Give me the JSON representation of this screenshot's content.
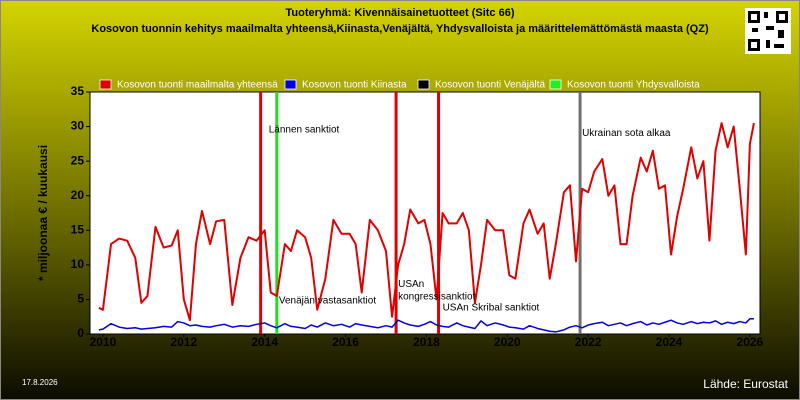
{
  "chart_data": {
    "type": "line",
    "title": "Tuoteryhmä: Kivennäisainetuotteet (Sitc 66)",
    "subtitle": "Kosovon tuonnin kehitys maailmalta yhteensä,Kiinasta,Venäjältä, Yhdysvalloista ja määrittelemättömästä maasta (QZ)",
    "ylabel": "* miljoonaa € / kuukausi",
    "date": "17.8.2026",
    "source": "Lähde: Eurostat",
    "x": [
      2009.9,
      2010.0,
      2010.2,
      2010.4,
      2010.6,
      2010.8,
      2010.95,
      2011.1,
      2011.3,
      2011.5,
      2011.7,
      2011.85,
      2012.0,
      2012.15,
      2012.3,
      2012.45,
      2012.65,
      2012.8,
      2013.0,
      2013.2,
      2013.4,
      2013.6,
      2013.8,
      2014.0,
      2014.15,
      2014.3,
      2014.5,
      2014.65,
      2014.8,
      2015.0,
      2015.15,
      2015.3,
      2015.5,
      2015.7,
      2015.9,
      2016.1,
      2016.25,
      2016.4,
      2016.6,
      2016.8,
      2017.0,
      2017.15,
      2017.3,
      2017.45,
      2017.6,
      2017.8,
      2017.95,
      2018.1,
      2018.25,
      2018.4,
      2018.55,
      2018.75,
      2018.9,
      2019.05,
      2019.2,
      2019.35,
      2019.5,
      2019.7,
      2019.9,
      2020.05,
      2020.2,
      2020.4,
      2020.55,
      2020.75,
      2020.9,
      2021.05,
      2021.2,
      2021.4,
      2021.55,
      2021.7,
      2021.85,
      2022.0,
      2022.15,
      2022.35,
      2022.5,
      2022.65,
      2022.8,
      2022.95,
      2023.1,
      2023.3,
      2023.45,
      2023.6,
      2023.75,
      2023.9,
      2024.05,
      2024.2,
      2024.35,
      2024.55,
      2024.7,
      2024.85,
      2025.0,
      2025.15,
      2025.3,
      2025.45,
      2025.6,
      2025.75,
      2025.9,
      2026.0,
      2026.1
    ],
    "series": [
      {
        "name": "Kosovon tuonti maailmalta yhteensä",
        "color": "#e00000",
        "values": [
          3.8,
          3.5,
          13,
          13.8,
          13.5,
          11,
          4.5,
          5.5,
          15.5,
          12.5,
          12.8,
          15,
          5,
          2,
          13,
          17.8,
          13,
          16.3,
          16.5,
          4.2,
          11,
          14,
          13.5,
          15,
          6,
          5.5,
          13,
          12,
          15,
          14,
          11,
          3.5,
          8,
          16.5,
          14.5,
          14.5,
          13,
          6,
          16.5,
          15,
          12,
          2.5,
          10,
          13,
          18,
          16,
          16.5,
          13,
          5,
          17.5,
          16,
          16,
          17.5,
          15,
          4.5,
          10,
          16.5,
          15,
          15,
          8.5,
          8,
          16,
          18,
          14.5,
          16,
          8,
          13,
          20.5,
          21.5,
          10.5,
          21,
          20.5,
          23.5,
          25.3,
          20,
          21.5,
          13,
          13,
          20,
          25.5,
          23.5,
          26.5,
          21,
          21.5,
          11.5,
          17,
          21,
          27,
          22.5,
          25,
          13.5,
          26.5,
          30.5,
          27,
          30,
          21,
          11.5,
          27.5,
          30.5
        ]
      },
      {
        "name": "Kosovon tuonti Kiinasta",
        "color": "#0000e0",
        "values": [
          0.6,
          0.7,
          1.5,
          1,
          0.8,
          0.9,
          0.7,
          0.8,
          0.9,
          1.1,
          1,
          1.8,
          1.6,
          1.2,
          1.3,
          1.1,
          1.0,
          1.2,
          1.4,
          1.0,
          1.2,
          1.1,
          1.4,
          1.6,
          1.2,
          0.9,
          1.5,
          1.1,
          1.0,
          0.8,
          1.3,
          1.0,
          1.6,
          1.2,
          1.4,
          1.0,
          1.5,
          1.3,
          1.1,
          0.9,
          1.2,
          1.0,
          2.0,
          1.6,
          1.3,
          1.1,
          1.4,
          1.8,
          1.3,
          1.1,
          1.0,
          1.6,
          1.2,
          1.0,
          0.8,
          1.9,
          1.2,
          1.6,
          1.3,
          1.0,
          0.9,
          0.7,
          1.2,
          0.8,
          0.6,
          0.4,
          0.3,
          0.6,
          1.0,
          1.2,
          0.9,
          1.3,
          1.5,
          1.7,
          1.2,
          1.4,
          1.6,
          1.2,
          1.5,
          1.8,
          1.3,
          1.6,
          1.4,
          1.7,
          2.0,
          1.6,
          1.4,
          1.8,
          1.5,
          1.7,
          1.6,
          1.9,
          1.4,
          1.7,
          1.5,
          1.8,
          1.6,
          2.2,
          2.2
        ]
      },
      {
        "name": "Kosovon tuonti Venäjältä",
        "color": "#000000"
      },
      {
        "name": "Kosovon tuonti Yhdysvalloista",
        "color": "#22ee22"
      }
    ],
    "markers": [
      {
        "x": 2013.9,
        "color": "#e00000"
      },
      {
        "x": 2014.3,
        "color": "#22dd22"
      },
      {
        "x": 2017.25,
        "color": "#e00000"
      },
      {
        "x": 2018.3,
        "color": "#e00000"
      },
      {
        "x": 2021.8,
        "color": "#707070"
      }
    ],
    "annotations": [
      {
        "text": "Lännen sanktiot",
        "x": 2014.1,
        "y": 29.5
      },
      {
        "text": "Venäjän vastasanktiot",
        "x": 2014.35,
        "y": 4.8
      },
      {
        "text": "USAn",
        "x": 2017.3,
        "y": 7.2
      },
      {
        "text": "kongressisanktiot",
        "x": 2017.3,
        "y": 5.4
      },
      {
        "text": "USAn Skribal sanktiot",
        "x": 2018.4,
        "y": 3.8
      },
      {
        "text": "Ukrainan sota alkaa",
        "x": 2021.85,
        "y": 29
      }
    ],
    "xlim": [
      2009.68,
      2026.25
    ],
    "xticks": [
      2010,
      2012,
      2014,
      2016,
      2018,
      2020,
      2022,
      2024,
      2026
    ],
    "ylim": [
      0,
      35
    ],
    "yticks": [
      0,
      5,
      10,
      15,
      20,
      25,
      30,
      35
    ],
    "grid": false
  }
}
